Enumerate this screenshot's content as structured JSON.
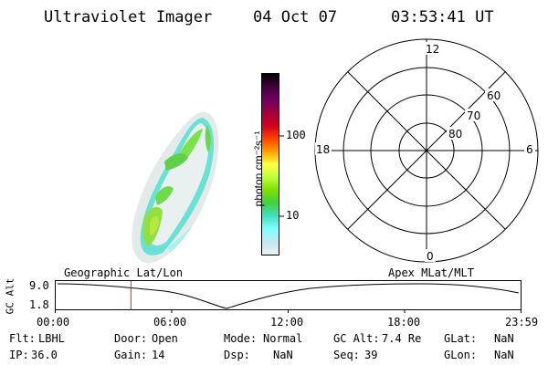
{
  "header": {
    "instrument": "Ultraviolet Imager",
    "date": "04 Oct 07",
    "time": "03:53:41 UT"
  },
  "colorbar": {
    "unit_label": "photon cm⁻²s⁻¹",
    "ticks": [
      "100",
      "10"
    ],
    "colors": [
      "#000000",
      "#400040",
      "#700060",
      "#a00040",
      "#d00020",
      "#ff4000",
      "#ffa000",
      "#ffff40",
      "#c0ff40",
      "#80e000",
      "#40d040",
      "#40e0c0",
      "#80ffff",
      "#c0e8f0",
      "#e8f0f0"
    ]
  },
  "polar_plot": {
    "mlt_labels": {
      "top": "12",
      "bottom": "0",
      "left": "18",
      "right": "6"
    },
    "lat_labels": [
      "60",
      "70",
      "80"
    ]
  },
  "orbit_plot": {
    "left_title": "Geographic Lat/Lon",
    "right_title": "Apex MLat/MLT",
    "y_axis_label": "GC Alt",
    "y_ticks": [
      "9.0",
      "1.8"
    ],
    "x_ticks": [
      "00:00",
      "06:00",
      "12:00",
      "18:00",
      "23:59"
    ],
    "current_time_hours": 3.9,
    "marker_color": "#e02020"
  },
  "info": {
    "row1": [
      {
        "label": "Flt:",
        "value": "LBHL"
      },
      {
        "label": "Door:",
        "value": "Open"
      },
      {
        "label": "Mode:",
        "value": "Normal"
      },
      {
        "label": "GC Alt:",
        "value": "7.4 Re"
      },
      {
        "label": "GLat:",
        "value": "NaN"
      }
    ],
    "row2": [
      {
        "label": "IP:",
        "value": "36.0"
      },
      {
        "label": "Gain:",
        "value": "14"
      },
      {
        "label": "Dsp:",
        "value": "NaN"
      },
      {
        "label": "Seq:",
        "value": "39"
      },
      {
        "label": "GLon:",
        "value": "NaN"
      }
    ]
  }
}
